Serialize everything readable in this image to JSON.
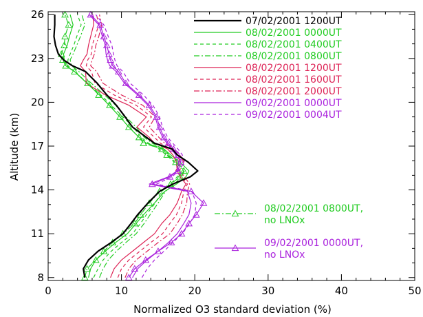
{
  "chart_data": {
    "type": "line",
    "xlabel": "Normalized O3 standard deviation (%)",
    "ylabel": "Altitude (km)",
    "xlim": [
      0,
      50
    ],
    "ylim": [
      7.8,
      26.2
    ],
    "xticks": [
      0,
      10,
      20,
      30,
      40,
      50
    ],
    "yticks": [
      8,
      11,
      14,
      17,
      20,
      23,
      26
    ],
    "legend_placement": "top-right",
    "series": [
      {
        "name": "07/02/2001 1200UT",
        "color": "#000000",
        "dash": "solid",
        "width": 2.2,
        "marker": false,
        "x": [
          5.0,
          4.8,
          5.5,
          6.8,
          8.6,
          10.2,
          11.3,
          12.2,
          13.6,
          15.2,
          17.0,
          19.4,
          20.4,
          19.1,
          17.6,
          16.9,
          14.5,
          13.4,
          11.5,
          10.5,
          9.3,
          8.0,
          6.7,
          5.1,
          3.3,
          2.1,
          1.4,
          1.0,
          0.8,
          0.9,
          0.9
        ],
        "y": [
          8.0,
          8.6,
          9.2,
          9.8,
          10.4,
          11.0,
          11.7,
          12.3,
          13.1,
          13.9,
          14.4,
          14.9,
          15.3,
          15.9,
          16.4,
          16.8,
          17.2,
          17.6,
          18.3,
          19.0,
          19.8,
          20.5,
          21.3,
          22.1,
          22.5,
          22.9,
          23.3,
          23.9,
          24.5,
          25.3,
          26.0
        ]
      },
      {
        "name": "08/02/2001 0000UT",
        "color": "#22cc22",
        "dash": "solid",
        "width": 1.2,
        "marker": false,
        "x": [
          5.5,
          5.8,
          6.5,
          7.8,
          9.2,
          10.8,
          12.0,
          13.0,
          14.5,
          15.9,
          17.5,
          18.8,
          19.2,
          18.0,
          16.7,
          15.8,
          13.4,
          12.4,
          11.0,
          9.8,
          8.3,
          7.0,
          5.3,
          3.6,
          2.4,
          2.2,
          2.1,
          2.6,
          2.9,
          3.4,
          3.0
        ],
        "y": [
          8.0,
          8.6,
          9.2,
          9.8,
          10.4,
          11.0,
          11.7,
          12.3,
          13.1,
          13.9,
          14.4,
          14.9,
          15.3,
          15.9,
          16.4,
          16.8,
          17.2,
          17.6,
          18.3,
          19.0,
          19.8,
          20.5,
          21.3,
          22.1,
          22.5,
          22.9,
          23.3,
          23.9,
          24.5,
          25.3,
          26.0
        ]
      },
      {
        "name": "08/02/2001 0400UT",
        "color": "#22cc22",
        "dash": "5,4",
        "width": 1.2,
        "marker": false,
        "x": [
          6.2,
          6.8,
          7.5,
          8.6,
          10.0,
          11.5,
          12.6,
          13.4,
          14.6,
          15.5,
          16.7,
          17.6,
          18.0,
          17.2,
          16.1,
          15.1,
          13.7,
          12.7,
          11.6,
          10.2,
          8.6,
          7.2,
          5.4,
          3.6,
          2.7,
          2.7,
          3.0,
          3.5,
          3.9,
          4.5,
          4.0
        ],
        "y": [
          8.0,
          8.6,
          9.2,
          9.8,
          10.4,
          11.0,
          11.7,
          12.3,
          13.1,
          13.9,
          14.4,
          14.9,
          15.3,
          15.9,
          16.4,
          16.8,
          17.2,
          17.6,
          18.3,
          19.0,
          19.8,
          20.5,
          21.3,
          22.1,
          22.5,
          22.9,
          23.3,
          23.9,
          24.5,
          25.3,
          26.0
        ]
      },
      {
        "name": "08/02/2001 0800UT",
        "color": "#22cc22",
        "dash": "8,3,2,3",
        "width": 1.2,
        "marker": false,
        "x": [
          7.0,
          7.5,
          8.2,
          9.3,
          10.6,
          12.0,
          13.1,
          13.9,
          15.0,
          16.0,
          17.2,
          18.2,
          18.6,
          17.6,
          16.4,
          15.7,
          14.2,
          13.1,
          12.0,
          10.6,
          9.2,
          7.7,
          5.9,
          4.2,
          3.2,
          3.0,
          3.4,
          3.9,
          4.4,
          5.0,
          4.6
        ],
        "y": [
          8.0,
          8.6,
          9.2,
          9.8,
          10.4,
          11.0,
          11.7,
          12.3,
          13.1,
          13.9,
          14.4,
          14.9,
          15.3,
          15.9,
          16.4,
          16.8,
          17.2,
          17.6,
          18.3,
          19.0,
          19.8,
          20.5,
          21.3,
          22.1,
          22.5,
          22.9,
          23.3,
          23.9,
          24.5,
          25.3,
          26.0
        ]
      },
      {
        "name": "08/02/2001 1200UT",
        "color": "#dd2255",
        "dash": "solid",
        "width": 1.2,
        "marker": false,
        "x": [
          8.5,
          9.0,
          10.0,
          11.5,
          13.0,
          14.5,
          15.5,
          16.6,
          17.6,
          18.2,
          18.8,
          18.0,
          17.6,
          17.5,
          17.0,
          16.3,
          14.5,
          13.8,
          12.1,
          13.4,
          11.0,
          7.8,
          5.2,
          5.1,
          4.4,
          4.8,
          5.3,
          5.5,
          5.8,
          6.2,
          6.1
        ],
        "y": [
          8.0,
          8.6,
          9.2,
          9.8,
          10.4,
          11.0,
          11.7,
          12.3,
          13.1,
          13.9,
          14.4,
          14.9,
          15.3,
          15.9,
          16.4,
          16.8,
          17.2,
          17.6,
          18.3,
          19.0,
          19.8,
          20.5,
          21.3,
          22.1,
          22.5,
          22.9,
          23.3,
          23.9,
          24.5,
          25.3,
          26.0
        ]
      },
      {
        "name": "08/02/2001 1600UT",
        "color": "#dd2255",
        "dash": "5,4",
        "width": 1.2,
        "marker": false,
        "x": [
          9.5,
          10.0,
          11.0,
          12.5,
          14.0,
          15.6,
          16.6,
          17.5,
          18.2,
          18.5,
          19.0,
          18.2,
          17.4,
          18.0,
          17.6,
          16.7,
          15.3,
          14.5,
          13.0,
          14.1,
          12.0,
          9.0,
          6.4,
          5.9,
          5.2,
          5.4,
          5.9,
          6.0,
          6.4,
          6.9,
          6.6
        ],
        "y": [
          8.0,
          8.6,
          9.2,
          9.8,
          10.4,
          11.0,
          11.7,
          12.3,
          13.1,
          13.9,
          14.4,
          14.9,
          15.3,
          15.9,
          16.4,
          16.8,
          17.2,
          17.6,
          18.3,
          19.0,
          19.8,
          20.5,
          21.3,
          22.1,
          22.5,
          22.9,
          23.3,
          23.9,
          24.5,
          25.3,
          26.0
        ]
      },
      {
        "name": "08/02/2001 2000UT",
        "color": "#dd2255",
        "dash": "8,3,2,3",
        "width": 1.2,
        "marker": false,
        "x": [
          10.5,
          11.0,
          12.0,
          13.5,
          15.0,
          16.6,
          17.6,
          18.3,
          18.9,
          19.0,
          19.3,
          18.6,
          17.9,
          18.5,
          18.0,
          17.2,
          15.9,
          15.1,
          13.8,
          14.6,
          12.9,
          10.0,
          7.5,
          6.6,
          5.8,
          6.0,
          6.3,
          6.5,
          6.9,
          7.3,
          7.0
        ],
        "y": [
          8.0,
          8.6,
          9.2,
          9.8,
          10.4,
          11.0,
          11.7,
          12.3,
          13.1,
          13.9,
          14.4,
          14.9,
          15.3,
          15.9,
          16.4,
          16.8,
          17.2,
          17.6,
          18.3,
          19.0,
          19.8,
          20.5,
          21.3,
          22.1,
          22.5,
          22.9,
          23.3,
          23.9,
          24.5,
          25.3,
          26.0
        ]
      },
      {
        "name": "09/02/2001 0000UT",
        "color": "#aa22dd",
        "dash": "solid",
        "width": 1.2,
        "marker": false,
        "x": [
          11.5,
          12.2,
          13.5,
          15.0,
          16.4,
          17.6,
          18.5,
          19.2,
          19.5,
          19.0,
          13.8,
          16.4,
          17.6,
          17.8,
          17.4,
          16.8,
          16.2,
          15.6,
          15.0,
          14.6,
          13.6,
          12.2,
          10.4,
          9.3,
          8.4,
          8.1,
          7.9,
          7.8,
          7.4,
          6.9,
          5.6
        ],
        "y": [
          8.0,
          8.6,
          9.2,
          9.8,
          10.4,
          11.0,
          11.7,
          12.3,
          13.1,
          13.9,
          14.4,
          14.9,
          15.3,
          15.9,
          16.4,
          16.8,
          17.2,
          17.6,
          18.3,
          19.0,
          19.8,
          20.5,
          21.3,
          22.1,
          22.5,
          22.9,
          23.3,
          23.9,
          24.5,
          25.3,
          26.0
        ]
      },
      {
        "name": "09/02/2001 0004UT",
        "color": "#aa22dd",
        "dash": "5,4",
        "width": 1.2,
        "marker": false,
        "x": [
          12.8,
          13.5,
          14.5,
          15.8,
          17.0,
          18.3,
          19.3,
          20.0,
          20.2,
          19.6,
          14.8,
          16.9,
          17.8,
          18.6,
          18.3,
          17.7,
          17.0,
          16.3,
          15.6,
          15.2,
          14.3,
          13.0,
          11.2,
          10.2,
          9.4,
          9.1,
          8.9,
          8.7,
          8.2,
          7.6,
          6.5
        ],
        "y": [
          8.0,
          8.6,
          9.2,
          9.8,
          10.4,
          11.0,
          11.7,
          12.3,
          13.1,
          13.9,
          14.4,
          14.9,
          15.3,
          15.9,
          16.4,
          16.8,
          17.2,
          17.6,
          18.3,
          19.0,
          19.8,
          20.5,
          21.3,
          22.1,
          22.5,
          22.9,
          23.3,
          23.9,
          24.5,
          25.3,
          26.0
        ]
      },
      {
        "name": "08/02/2001 0800UT, no LNOx",
        "legend_lines": [
          "08/02/2001 0800UT,",
          "no LNOx"
        ],
        "color": "#22cc22",
        "dash": "8,3,2,3",
        "width": 1.2,
        "marker": true,
        "x": [
          5.0,
          5.3,
          6.5,
          7.6,
          8.8,
          10.2,
          11.8,
          12.6,
          13.8,
          15.2,
          16.7,
          18.0,
          18.5,
          17.4,
          16.2,
          15.5,
          13.0,
          12.4,
          11.0,
          9.8,
          8.4,
          6.9,
          5.4,
          3.6,
          2.4,
          2.0,
          1.8,
          2.2,
          2.3,
          2.8,
          2.3
        ],
        "y": [
          8.0,
          8.6,
          9.2,
          9.8,
          10.4,
          11.0,
          11.7,
          12.3,
          13.1,
          13.9,
          14.4,
          14.9,
          15.3,
          15.9,
          16.4,
          16.8,
          17.2,
          17.6,
          18.3,
          19.0,
          19.8,
          20.5,
          21.3,
          22.1,
          22.5,
          22.9,
          23.3,
          23.9,
          24.5,
          25.3,
          26.0
        ]
      },
      {
        "name": "09/02/2001 0000UT, no LNOx",
        "legend_lines": [
          "09/02/2001 0000UT,",
          "no LNOx"
        ],
        "color": "#aa22dd",
        "dash": "solid",
        "width": 1.2,
        "marker": true,
        "x": [
          11.0,
          11.8,
          13.3,
          15.0,
          16.8,
          18.2,
          19.2,
          20.2,
          21.2,
          19.5,
          14.2,
          16.6,
          17.7,
          18.1,
          17.7,
          17.1,
          16.4,
          15.8,
          15.2,
          14.8,
          13.8,
          12.4,
          10.6,
          9.6,
          8.8,
          8.5,
          8.3,
          8.0,
          7.6,
          7.1,
          5.8
        ],
        "y": [
          8.0,
          8.6,
          9.2,
          9.8,
          10.4,
          11.0,
          11.7,
          12.3,
          13.1,
          13.9,
          14.4,
          14.9,
          15.3,
          15.9,
          16.4,
          16.8,
          17.2,
          17.6,
          18.3,
          19.0,
          19.8,
          20.5,
          21.3,
          22.1,
          22.5,
          22.9,
          23.3,
          23.9,
          24.5,
          25.3,
          26.0
        ]
      }
    ]
  }
}
